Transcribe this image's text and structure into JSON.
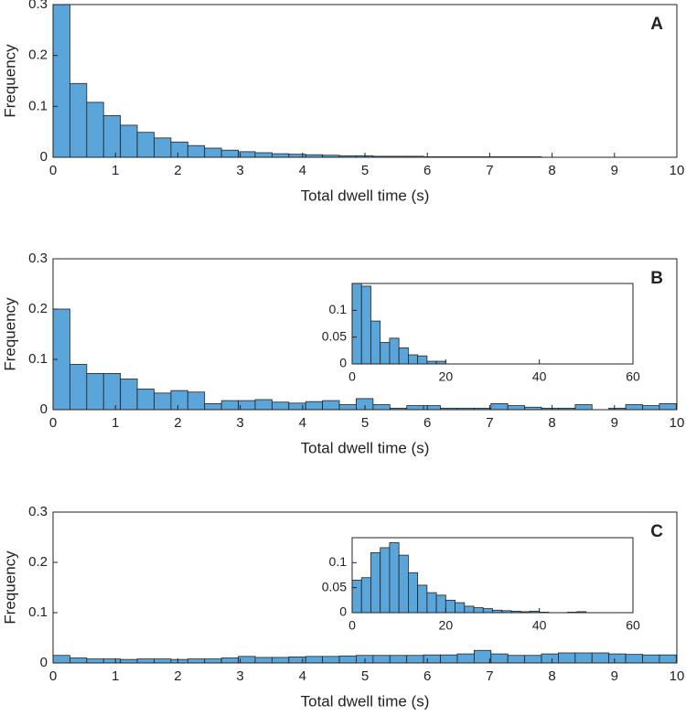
{
  "chart_data": [
    {
      "type": "histogram",
      "label": "A",
      "xlabel": "Total dwell time (s)",
      "ylabel": "Frequency",
      "color": "#5aa5d9",
      "bins": [
        0,
        0.27,
        0.54,
        0.81,
        1.08,
        1.35,
        1.62,
        1.89,
        2.16,
        2.43,
        2.7,
        2.97,
        3.24,
        3.51,
        3.78,
        4.05,
        4.32,
        4.59,
        4.86,
        5.13,
        5.4,
        5.67,
        5.94,
        6.21,
        6.48,
        6.75,
        7.02,
        7.29,
        7.56,
        7.83,
        8.1,
        8.37,
        8.64,
        8.91,
        9.18,
        9.45,
        9.72,
        9.99
      ],
      "values": [
        0.3,
        0.145,
        0.108,
        0.082,
        0.063,
        0.049,
        0.038,
        0.03,
        0.023,
        0.018,
        0.014,
        0.011,
        0.009,
        0.007,
        0.006,
        0.005,
        0.004,
        0.003,
        0.003,
        0.002,
        0.002,
        0.002,
        0.001,
        0.001,
        0.001,
        0.001,
        0.001,
        0.001,
        0.001,
        0,
        0,
        0,
        0,
        0,
        0,
        0,
        0
      ],
      "xlim": [
        0,
        10
      ],
      "xticks": [
        0,
        1,
        2,
        3,
        4,
        5,
        6,
        7,
        8,
        9,
        10
      ],
      "ylim": [
        0,
        0.3
      ],
      "yticks": [
        0,
        0.1,
        0.2,
        0.3
      ]
    },
    {
      "type": "histogram",
      "label": "B",
      "xlabel": "Total dwell time (s)",
      "ylabel": "Frequency",
      "color": "#5aa5d9",
      "bins": [
        0,
        0.27,
        0.54,
        0.81,
        1.08,
        1.35,
        1.62,
        1.89,
        2.16,
        2.43,
        2.7,
        2.97,
        3.24,
        3.51,
        3.78,
        4.05,
        4.32,
        4.59,
        4.86,
        5.13,
        5.4,
        5.67,
        5.94,
        6.21,
        6.48,
        6.75,
        7.02,
        7.29,
        7.56,
        7.83,
        8.1,
        8.37,
        8.64,
        8.91,
        9.18,
        9.45,
        9.72,
        9.99
      ],
      "values": [
        0.2,
        0.09,
        0.072,
        0.072,
        0.061,
        0.041,
        0.033,
        0.038,
        0.035,
        0.012,
        0.018,
        0.018,
        0.02,
        0.015,
        0.013,
        0.016,
        0.018,
        0.01,
        0.022,
        0.01,
        0.003,
        0.008,
        0.008,
        0.003,
        0.003,
        0.003,
        0.012,
        0.008,
        0.005,
        0.003,
        0.003,
        0.01,
        0,
        0.003,
        0.01,
        0.008,
        0.012
      ],
      "xlim": [
        0,
        10
      ],
      "xticks": [
        0,
        1,
        2,
        3,
        4,
        5,
        6,
        7,
        8,
        9,
        10
      ],
      "ylim": [
        0,
        0.3
      ],
      "yticks": [
        0,
        0.1,
        0.2,
        0.3
      ]
    },
    {
      "type": "histogram",
      "color": "#5aa5d9",
      "bins": [
        0,
        2,
        4,
        6,
        8,
        10,
        12,
        14,
        16,
        18,
        20,
        22,
        24,
        26,
        28,
        30,
        32,
        34,
        36,
        38,
        40,
        42,
        44,
        46,
        48,
        50,
        52,
        54,
        56,
        58,
        60
      ],
      "values": [
        0.15,
        0.145,
        0.08,
        0.04,
        0.048,
        0.03,
        0.017,
        0.015,
        0.005,
        0.005,
        0,
        0,
        0,
        0,
        0,
        0,
        0,
        0,
        0,
        0,
        0,
        0,
        0,
        0,
        0,
        0,
        0,
        0,
        0,
        0
      ],
      "xlim": [
        0,
        60
      ],
      "xticks": [
        0,
        20,
        40,
        60
      ],
      "ylim": [
        0,
        0.15
      ],
      "yticks": [
        0,
        0.05,
        0.1
      ]
    },
    {
      "type": "histogram",
      "label": "C",
      "xlabel": "Total dwell time (s)",
      "ylabel": "Frequency",
      "color": "#5aa5d9",
      "bins": [
        0,
        0.27,
        0.54,
        0.81,
        1.08,
        1.35,
        1.62,
        1.89,
        2.16,
        2.43,
        2.7,
        2.97,
        3.24,
        3.51,
        3.78,
        4.05,
        4.32,
        4.59,
        4.86,
        5.13,
        5.4,
        5.67,
        5.94,
        6.21,
        6.48,
        6.75,
        7.02,
        7.29,
        7.56,
        7.83,
        8.1,
        8.37,
        8.64,
        8.91,
        9.18,
        9.45,
        9.72,
        9.99
      ],
      "values": [
        0.015,
        0.01,
        0.008,
        0.008,
        0.007,
        0.008,
        0.008,
        0.007,
        0.008,
        0.008,
        0.01,
        0.013,
        0.011,
        0.011,
        0.012,
        0.013,
        0.013,
        0.014,
        0.015,
        0.015,
        0.015,
        0.015,
        0.016,
        0.016,
        0.018,
        0.025,
        0.018,
        0.015,
        0.015,
        0.018,
        0.02,
        0.02,
        0.02,
        0.018,
        0.017,
        0.016,
        0.016
      ],
      "xlim": [
        0,
        10
      ],
      "xticks": [
        0,
        1,
        2,
        3,
        4,
        5,
        6,
        7,
        8,
        9,
        10
      ],
      "ylim": [
        0,
        0.3
      ],
      "yticks": [
        0,
        0.1,
        0.2,
        0.3
      ]
    },
    {
      "type": "histogram",
      "color": "#5aa5d9",
      "bins": [
        0,
        2,
        4,
        6,
        8,
        10,
        12,
        14,
        16,
        18,
        20,
        22,
        24,
        26,
        28,
        30,
        32,
        34,
        36,
        38,
        40,
        42,
        44,
        46,
        48,
        50,
        52,
        54,
        56,
        58,
        60
      ],
      "values": [
        0.065,
        0.07,
        0.12,
        0.13,
        0.14,
        0.115,
        0.08,
        0.055,
        0.04,
        0.035,
        0.025,
        0.02,
        0.013,
        0.01,
        0.008,
        0.005,
        0.004,
        0.003,
        0.002,
        0.003,
        0.001,
        0,
        0,
        0.001,
        0.002,
        0,
        0,
        0,
        0,
        0
      ],
      "xlim": [
        0,
        60
      ],
      "xticks": [
        0,
        20,
        40,
        60
      ],
      "ylim": [
        0,
        0.15
      ],
      "yticks": [
        0,
        0.05,
        0.1
      ]
    }
  ]
}
